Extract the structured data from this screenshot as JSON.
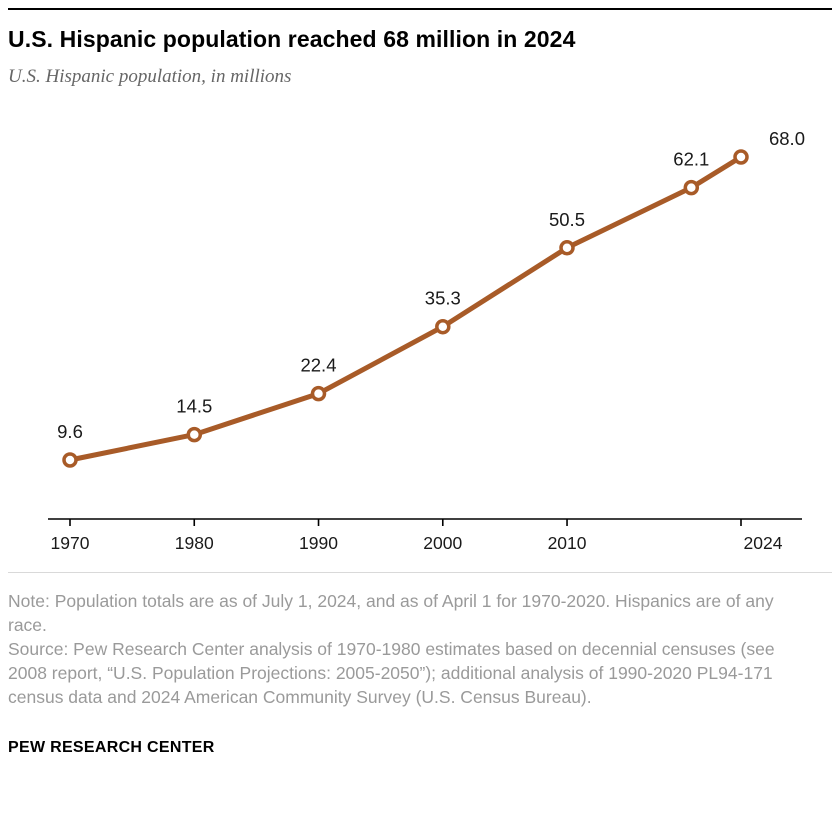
{
  "header": {
    "title": "U.S. Hispanic population reached 68 million in 2024",
    "subtitle": "U.S. Hispanic population, in millions"
  },
  "chart_data": {
    "type": "line",
    "title": "U.S. Hispanic population reached 68 million in 2024",
    "subtitle": "U.S. Hispanic population, in millions",
    "x": [
      1970,
      1980,
      1990,
      2000,
      2010,
      2020,
      2024
    ],
    "values": [
      9.6,
      14.5,
      22.4,
      35.3,
      50.5,
      62.1,
      68.0
    ],
    "point_labels": [
      "9.6",
      "14.5",
      "22.4",
      "35.3",
      "50.5",
      "62.1",
      "68.0"
    ],
    "x_tick_years": [
      1970,
      1980,
      1990,
      2000,
      2010,
      2024
    ],
    "x_tick_labels": [
      "1970",
      "1980",
      "1990",
      "2000",
      "2010",
      "2024"
    ],
    "xlim": [
      1970,
      2024
    ],
    "ylim": [
      0,
      75
    ],
    "xlabel": "",
    "ylabel": "",
    "grid": false,
    "legend": "none",
    "line_color": "#A85B28",
    "marker_style": "open-circle",
    "label_color": "#1a1a1a"
  },
  "notes": {
    "note": "Note: Population totals are as of July 1, 2024, and as of April 1 for 1970-2020. Hispanics are of any race.",
    "source": "Source: Pew Research Center analysis of 1970-1980 estimates based on decennial censuses (see 2008 report, “U.S. Population Projections: 2005-2050”); additional analysis of 1990-2020 PL94-171 census data and 2024 American Community Survey (U.S. Census Bureau).",
    "footer": "PEW RESEARCH CENTER"
  }
}
